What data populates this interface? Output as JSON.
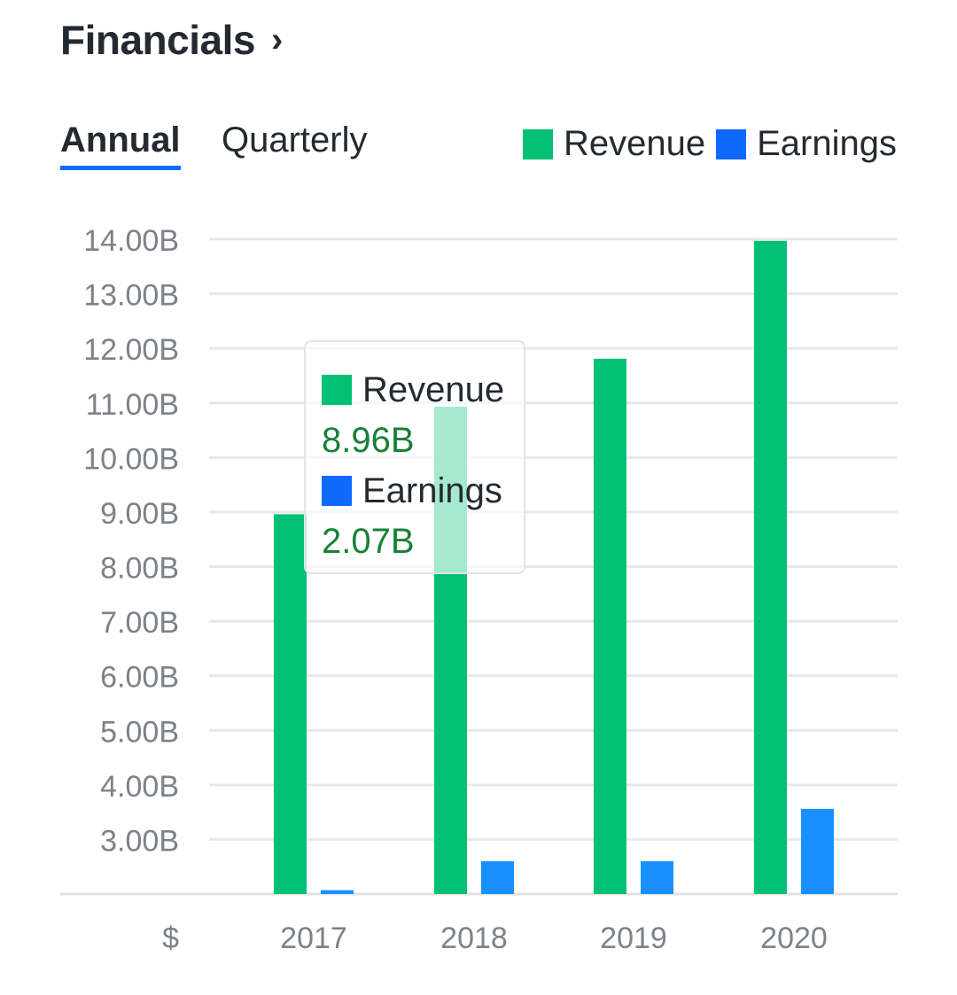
{
  "header": {
    "title": "Financials",
    "chevron": "›"
  },
  "tabs": [
    {
      "label": "Annual",
      "active": true
    },
    {
      "label": "Quarterly",
      "active": false
    }
  ],
  "colors": {
    "revenue": "#00c073",
    "earnings": "#1890ff",
    "legend_earnings": "#0f69ff",
    "accent": "#0f69ff",
    "value_text": "#188038"
  },
  "tooltip": {
    "revenue_label": "Revenue",
    "revenue_value": "8.96B",
    "earnings_label": "Earnings",
    "earnings_value": "2.07B"
  },
  "chart_data": {
    "type": "bar",
    "title": "Financials - Annual",
    "categories": [
      "2017",
      "2018",
      "2019",
      "2020"
    ],
    "series": [
      {
        "name": "Revenue",
        "values": [
          8.96,
          10.93,
          11.81,
          13.97
        ]
      },
      {
        "name": "Earnings",
        "values": [
          2.07,
          2.6,
          2.6,
          3.56
        ]
      }
    ],
    "unit": "B",
    "currency_label": "$",
    "ylim": [
      2,
      14
    ],
    "yticks": [
      "14.00B",
      "13.00B",
      "12.00B",
      "11.00B",
      "10.00B",
      "9.00B",
      "8.00B",
      "7.00B",
      "6.00B",
      "5.00B",
      "4.00B",
      "3.00B"
    ],
    "ytick_values": [
      14,
      13,
      12,
      11,
      10,
      9,
      8,
      7,
      6,
      5,
      4,
      3
    ],
    "grid": true,
    "legend": "top-right"
  }
}
